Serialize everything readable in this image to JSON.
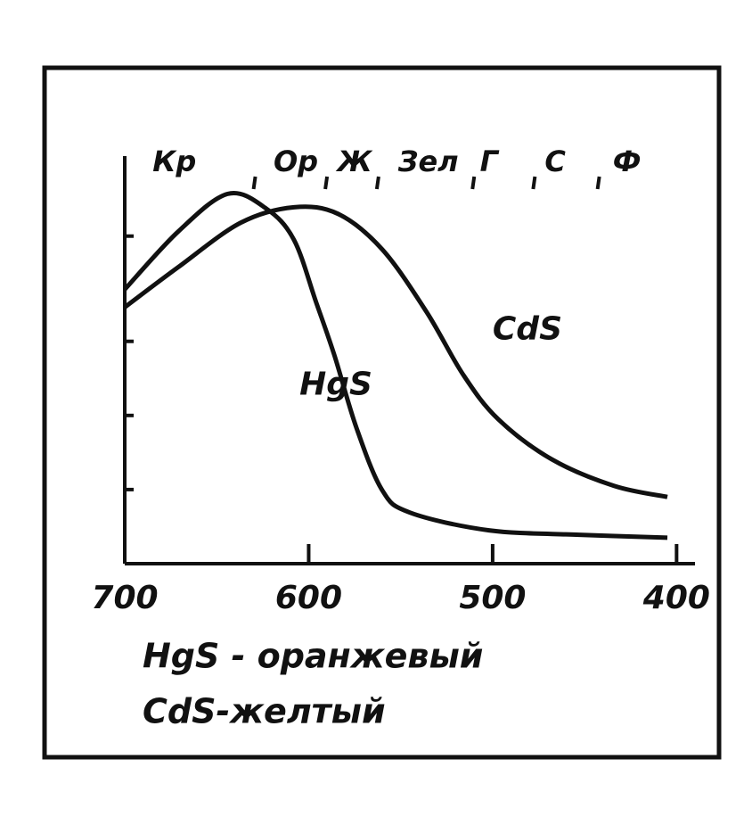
{
  "chart_data": {
    "type": "line",
    "xlim": [
      700,
      390
    ],
    "xticks": [
      700,
      600,
      500,
      400
    ],
    "ylim": [
      0,
      5.5
    ],
    "yticks": [
      1,
      2,
      3,
      4.42
    ],
    "color_bands": [
      {
        "label": "Кр",
        "x": 673
      },
      {
        "label": "Ор",
        "x": 607
      },
      {
        "label": "Ж",
        "x": 575
      },
      {
        "label": "Зел",
        "x": 535
      },
      {
        "label": "Г",
        "x": 502
      },
      {
        "label": "С",
        "x": 466
      },
      {
        "label": "Ф",
        "x": 427
      }
    ],
    "band_edges": [
      629,
      590,
      562,
      510,
      477,
      442
    ],
    "series": [
      {
        "name": "HgS",
        "color": "#111111",
        "x": [
          700,
          671,
          644,
          623,
          608,
          596,
          586,
          574,
          560,
          545,
          502,
          453,
          405
        ],
        "values": [
          3.7,
          4.48,
          4.99,
          4.79,
          4.37,
          3.53,
          2.81,
          1.83,
          0.99,
          0.69,
          0.45,
          0.39,
          0.35
        ],
        "label_at": [
          605,
          2.4
        ]
      },
      {
        "name": "CdS",
        "color": "#111111",
        "x": [
          700,
          671,
          637,
          608,
          584,
          560,
          536,
          516,
          497,
          468,
          434,
          405
        ],
        "values": [
          3.46,
          4.0,
          4.6,
          4.81,
          4.72,
          4.24,
          3.4,
          2.55,
          1.95,
          1.41,
          1.05,
          0.9
        ],
        "label_at": [
          500,
          3.15
        ]
      }
    ],
    "notes": [
      "HgS - оранжевый",
      "CdS-желтый"
    ]
  }
}
